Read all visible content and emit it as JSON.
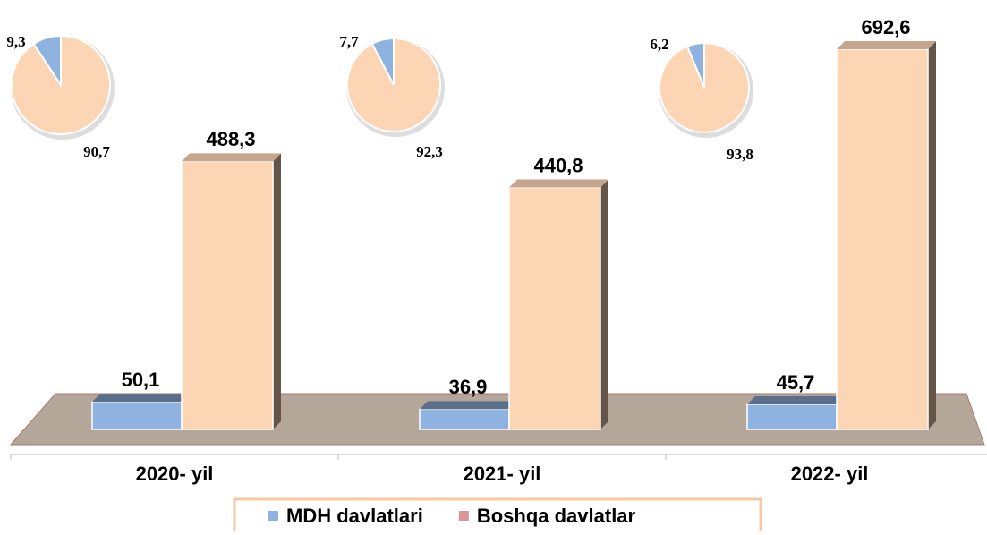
{
  "chart_data": [
    {
      "type": "bar",
      "categories": [
        "2020- yil",
        "2021- yil",
        "2022- yil"
      ],
      "series": [
        {
          "name": "MDH davlatlari",
          "color": "#8fb3e0",
          "values": [
            50.1,
            36.9,
            45.7
          ],
          "value_labels": [
            "50,1",
            "36,9",
            "45,7"
          ]
        },
        {
          "name": "Boshqa davlatlar",
          "color": "#fcd5b4",
          "legend_color": "#d99694",
          "values": [
            488.3,
            440.8,
            692.6
          ],
          "value_labels": [
            "488,3",
            "440,8",
            "692,6"
          ]
        }
      ]
    },
    {
      "type": "pie",
      "values": [
        9.3,
        90.7
      ],
      "value_labels": [
        "9,3",
        "90,7"
      ],
      "colors": [
        "#8fb3e0",
        "#fcd5b4"
      ]
    },
    {
      "type": "pie",
      "values": [
        7.7,
        92.3
      ],
      "value_labels": [
        "7,7",
        "92,3"
      ],
      "colors": [
        "#8fb3e0",
        "#fcd5b4"
      ]
    },
    {
      "type": "pie",
      "values": [
        6.2,
        93.8
      ],
      "value_labels": [
        "6,2",
        "93,8"
      ],
      "colors": [
        "#8fb3e0",
        "#fcd5b4"
      ]
    }
  ]
}
